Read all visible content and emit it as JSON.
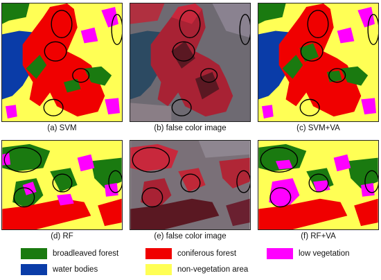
{
  "figure": {
    "panels": [
      {
        "id": "a",
        "caption": "(a) SVM",
        "kind": "classified-top"
      },
      {
        "id": "b",
        "caption": "(b) false color image",
        "kind": "falsecolor-top"
      },
      {
        "id": "c",
        "caption": "(c) SVM+VA",
        "kind": "classified-top"
      },
      {
        "id": "d",
        "caption": "(d) RF",
        "kind": "classified-bottom"
      },
      {
        "id": "e",
        "caption": "(e) false color image",
        "kind": "falsecolor-bottom"
      },
      {
        "id": "f",
        "caption": "(f) RF+VA",
        "kind": "classified-bottom"
      }
    ],
    "legend": [
      {
        "label": "broadleaved forest",
        "color": "#1a7a10"
      },
      {
        "label": "coniferous forest",
        "color": "#f00000"
      },
      {
        "label": "low vegetation",
        "color": "#ff00ff"
      },
      {
        "label": "water bodies",
        "color": "#0a3ca8"
      },
      {
        "label": "non-vegetation area",
        "color": "#ffff55"
      }
    ],
    "colors": {
      "broadleaved": "#1a7a10",
      "coniferous": "#f00000",
      "low_vegetation": "#ff00ff",
      "water": "#0a3ca8",
      "non_vegetation": "#ffff55",
      "falsecolor_bg": "#6e6a72",
      "falsecolor_red": "#c8283c",
      "falsecolor_dark": "#5a1822"
    }
  }
}
